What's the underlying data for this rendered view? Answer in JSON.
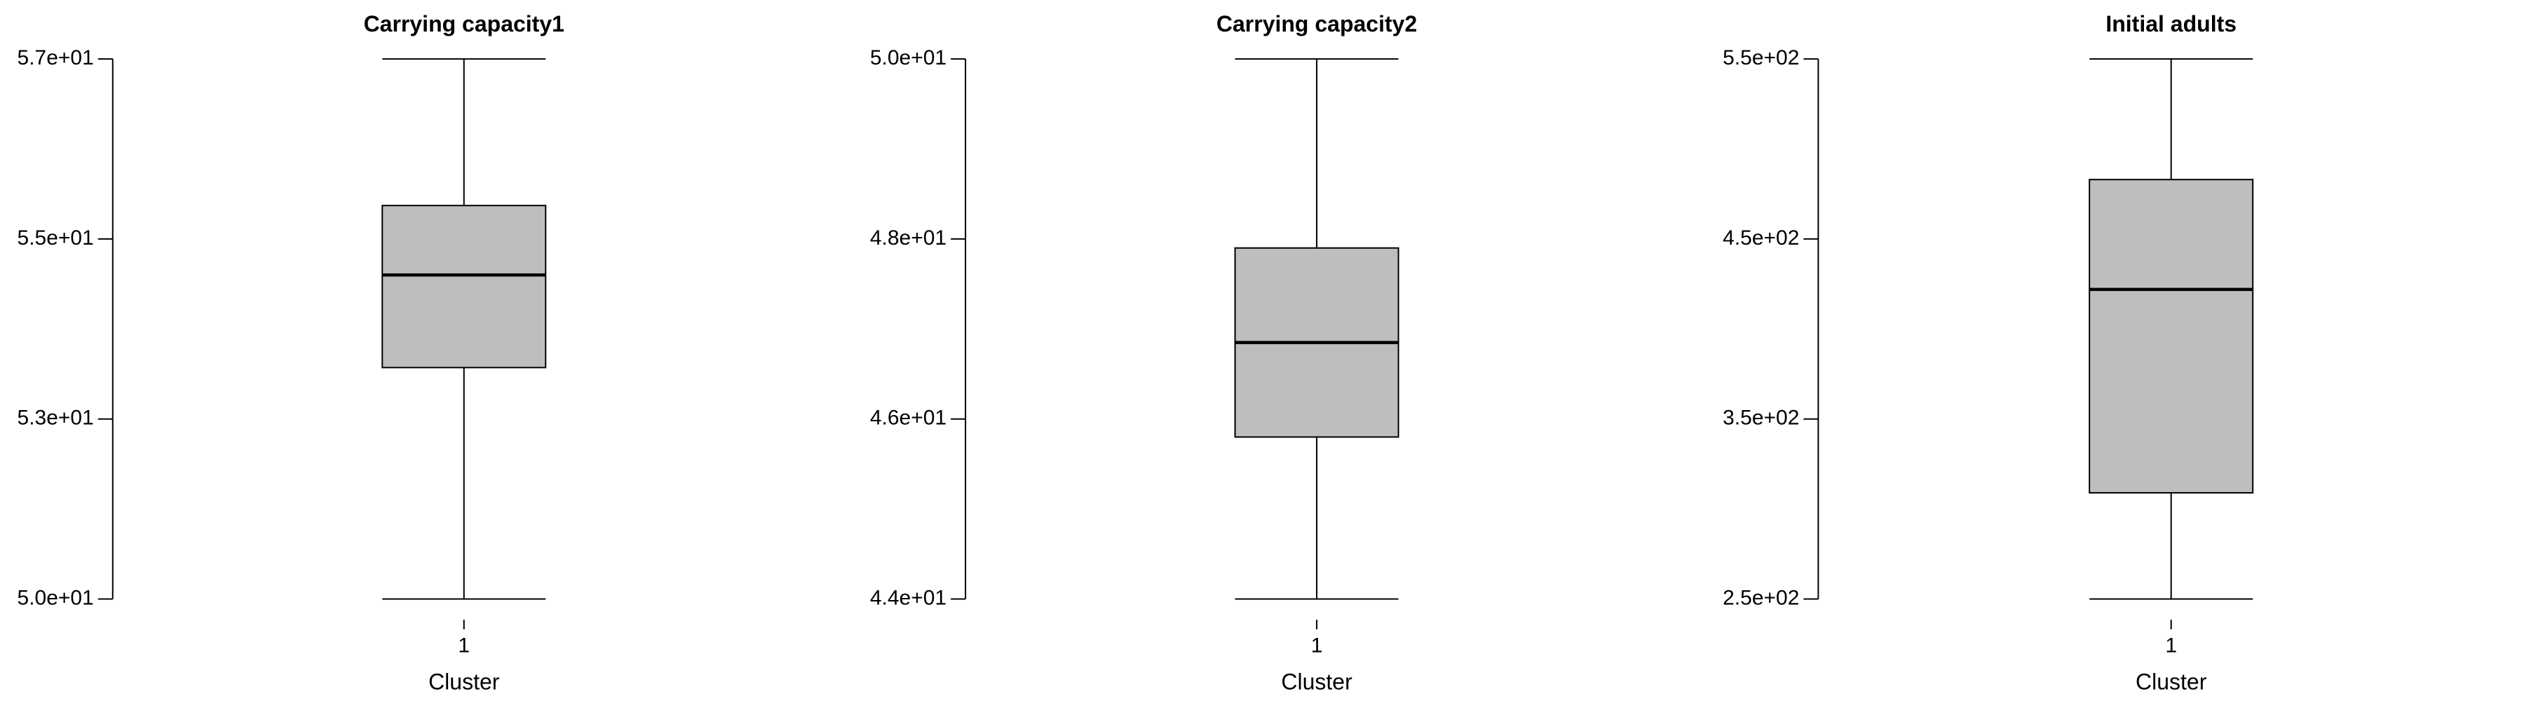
{
  "chart_data": [
    {
      "type": "box",
      "title": "Carrying capacity1",
      "xlabel": "Cluster",
      "ylabel": "",
      "categories": [
        "1"
      ],
      "yticks": [
        "5.0e+01",
        "5.3e+01",
        "5.5e+01",
        "5.7e+01"
      ],
      "ylim": [
        50,
        57
      ],
      "box": {
        "min": 50,
        "q1": 53.0,
        "median": 54.2,
        "q3": 55.1,
        "max": 57
      }
    },
    {
      "type": "box",
      "title": "Carrying capacity2",
      "xlabel": "Cluster",
      "ylabel": "",
      "categories": [
        "1"
      ],
      "yticks": [
        "4.4e+01",
        "4.6e+01",
        "4.8e+01",
        "5.0e+01"
      ],
      "ylim": [
        44,
        50
      ],
      "box": {
        "min": 44,
        "q1": 45.8,
        "median": 46.85,
        "q3": 47.9,
        "max": 50
      }
    },
    {
      "type": "box",
      "title": "Initial adults",
      "xlabel": "Cluster",
      "ylabel": "",
      "categories": [
        "1"
      ],
      "yticks": [
        "2.5e+02",
        "3.5e+02",
        "4.5e+02",
        "5.5e+02"
      ],
      "ylim": [
        250,
        550
      ],
      "box": {
        "min": 250,
        "q1": 309,
        "median": 422,
        "q3": 483,
        "max": 550
      }
    }
  ]
}
